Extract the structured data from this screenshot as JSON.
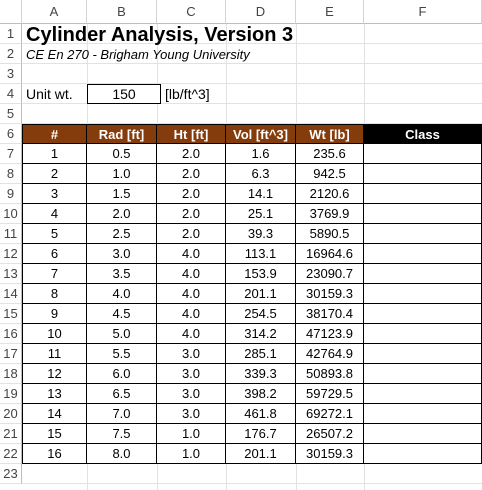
{
  "columns": [
    "A",
    "B",
    "C",
    "D",
    "E",
    "F"
  ],
  "rows": [
    "1",
    "2",
    "3",
    "4",
    "5",
    "6",
    "7",
    "8",
    "9",
    "10",
    "11",
    "12",
    "13",
    "14",
    "15",
    "16",
    "17",
    "18",
    "19",
    "20",
    "21",
    "22",
    "23"
  ],
  "title": "Cylinder Analysis, Version 3",
  "subtitle": "CE En 270 - Brigham Young University",
  "unit_wt": {
    "label": "Unit wt.",
    "value": "150",
    "units": "[lb/ft^3]"
  },
  "table": {
    "headers": [
      "#",
      "Rad [ft]",
      "Ht [ft]",
      "Vol [ft^3]",
      "Wt [lb]",
      "Class"
    ],
    "rows": [
      [
        "1",
        "0.5",
        "2.0",
        "1.6",
        "235.6",
        ""
      ],
      [
        "2",
        "1.0",
        "2.0",
        "6.3",
        "942.5",
        ""
      ],
      [
        "3",
        "1.5",
        "2.0",
        "14.1",
        "2120.6",
        ""
      ],
      [
        "4",
        "2.0",
        "2.0",
        "25.1",
        "3769.9",
        ""
      ],
      [
        "5",
        "2.5",
        "2.0",
        "39.3",
        "5890.5",
        ""
      ],
      [
        "6",
        "3.0",
        "4.0",
        "113.1",
        "16964.6",
        ""
      ],
      [
        "7",
        "3.5",
        "4.0",
        "153.9",
        "23090.7",
        ""
      ],
      [
        "8",
        "4.0",
        "4.0",
        "201.1",
        "30159.3",
        ""
      ],
      [
        "9",
        "4.5",
        "4.0",
        "254.5",
        "38170.4",
        ""
      ],
      [
        "10",
        "5.0",
        "4.0",
        "314.2",
        "47123.9",
        ""
      ],
      [
        "11",
        "5.5",
        "3.0",
        "285.1",
        "42764.9",
        ""
      ],
      [
        "12",
        "6.0",
        "3.0",
        "339.3",
        "50893.8",
        ""
      ],
      [
        "13",
        "6.5",
        "3.0",
        "398.2",
        "59729.5",
        ""
      ],
      [
        "14",
        "7.0",
        "3.0",
        "461.8",
        "69272.1",
        ""
      ],
      [
        "15",
        "7.5",
        "1.0",
        "176.7",
        "26507.2",
        ""
      ],
      [
        "16",
        "8.0",
        "1.0",
        "201.1",
        "30159.3",
        ""
      ]
    ]
  },
  "colors": {
    "header_brown": "#843c0c",
    "header_black": "#000000",
    "grid": "#e2e2e2"
  }
}
